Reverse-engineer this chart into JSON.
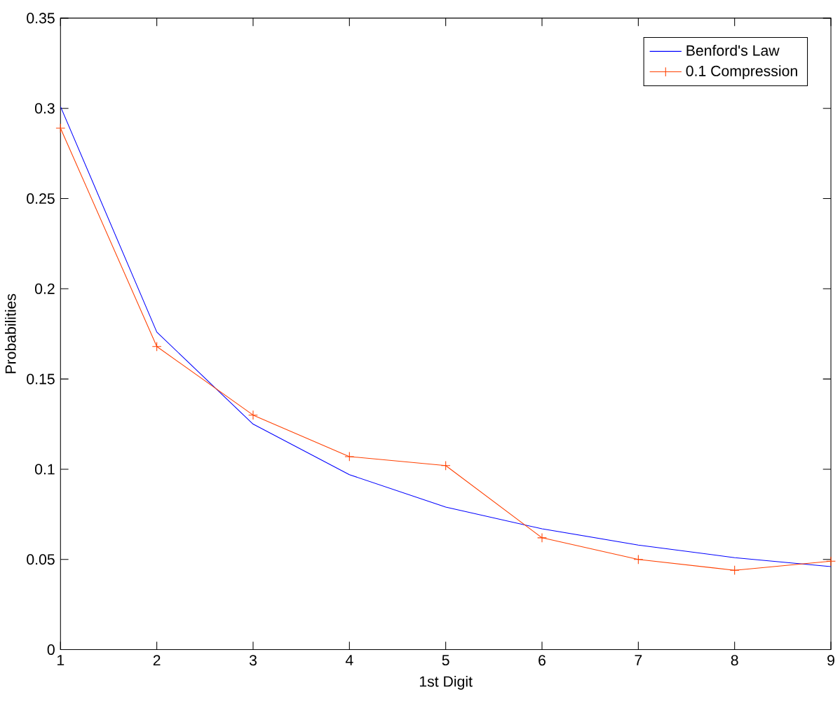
{
  "chart_data": {
    "type": "line",
    "xlabel": "1st Digit",
    "ylabel": "Probabilities",
    "x": [
      1,
      2,
      3,
      4,
      5,
      6,
      7,
      8,
      9
    ],
    "series": [
      {
        "name": "Benford's Law",
        "color": "#0000ff",
        "marker": "none",
        "values": [
          0.301,
          0.176,
          0.125,
          0.097,
          0.079,
          0.067,
          0.058,
          0.051,
          0.046
        ]
      },
      {
        "name": "0.1 Compression",
        "color": "#ff4000",
        "marker": "cross",
        "values": [
          0.289,
          0.168,
          0.13,
          0.107,
          0.102,
          0.062,
          0.05,
          0.044,
          0.049
        ]
      }
    ],
    "xlim": [
      1,
      9
    ],
    "xticks": [
      1,
      2,
      3,
      4,
      5,
      6,
      7,
      8,
      9
    ],
    "ylim": [
      0,
      0.35
    ],
    "yticks": [
      0,
      0.05,
      0.1,
      0.15,
      0.2,
      0.25,
      0.3,
      0.35
    ],
    "grid": false,
    "legend": "top right"
  }
}
